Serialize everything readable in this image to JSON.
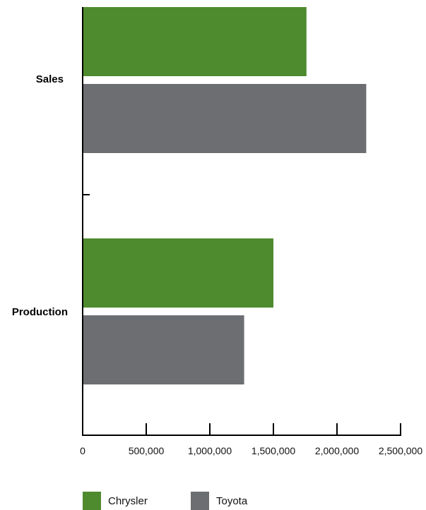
{
  "chart_data": {
    "type": "bar",
    "orientation": "horizontal",
    "categories": [
      "Sales",
      "Production"
    ],
    "series": [
      {
        "name": "Chrysler",
        "color": "#4e8a2e",
        "values": [
          1760000,
          1500000
        ]
      },
      {
        "name": "Toyota",
        "color": "#6d6e71",
        "values": [
          2230000,
          1270000
        ]
      }
    ],
    "xlim": [
      0,
      2500000
    ],
    "xticks": [
      0,
      500000,
      1000000,
      1500000,
      2000000,
      2500000
    ],
    "xtick_labels": [
      "0",
      "500,000",
      "1,000,000",
      "1,500,000",
      "2,000,000",
      "2,500,000"
    ],
    "title": "",
    "xlabel": "",
    "ylabel": "",
    "grid": false,
    "legend_position": "bottom-left"
  }
}
